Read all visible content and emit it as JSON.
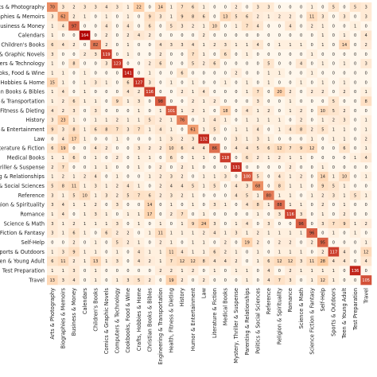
{
  "chart_data": {
    "type": "heatmap",
    "title": "",
    "xlabel": "",
    "ylabel": "",
    "colormap": "OrRd",
    "colors": {
      "low": "#fff7ec",
      "mid": "#fdbb84",
      "high": "#b30000",
      "text_dark": "#222222",
      "text_light": "#ffffff"
    },
    "categories": [
      "Arts & Photography",
      "Biographies & Memoirs",
      "Business & Money",
      "Calendars",
      "Children's Books",
      "Comics & Graphic Novels",
      "Computers & Technology",
      "Cookbooks, Food & Wine",
      "Crafts, Hobbies & Home",
      "Christian Books & Bibles",
      "Engineering & Transportation",
      "Health, Fitness & Dieting",
      "History",
      "Humor & Entertainment",
      "Law",
      "Literature & Fiction",
      "Medical Books",
      "Mystery, Thriller & Suspense",
      "Parenting & Relationships",
      "Politics & Social Sciences",
      "Reference",
      "Religion & Spirituality",
      "Romance",
      "Science & Math",
      "Science Fiction & Fantasy",
      "Self-Help",
      "Sports & Outdoors",
      "Teen & Young Adult",
      "Test Preparation",
      "Travel"
    ],
    "row_labels_visible": [
      "Arts & Photography",
      "Biographies & Memoirs",
      "Business & Money",
      "Calendars",
      "Children's Books",
      "Comics & Graphic Novels",
      "Computers & Technology",
      "Cookbooks, Food & Wine",
      "Crafts, Hobbies & Home",
      "Christian Books & Bibles",
      "Engineering & Transportation",
      "Health, Fitness & Dieting",
      "History",
      "Humor & Entertainment",
      "Law",
      "Literature & Fiction",
      "Medical Books",
      "Mystery, Thriller & Suspense",
      "Parenting & Relationships",
      "Politics & Social Sciences",
      "Reference",
      "Religion & Spirituality",
      "Romance",
      "Science & Math",
      "Science Fiction & Fantasy",
      "Self-Help",
      "Sports & Outdoors",
      "Teen & Young Adult",
      "Test Preparation",
      "Travel"
    ],
    "matrix": [
      [
        70,
        3,
        2,
        3,
        3,
        4,
        3,
        1,
        22,
        0,
        14,
        1,
        7,
        6,
        1,
        0,
        0,
        2,
        0,
        3,
        3,
        0,
        0,
        0,
        1,
        0,
        5,
        0,
        5,
        3
      ],
      [
        3,
        62,
        2,
        1,
        0,
        1,
        0,
        1,
        0,
        9,
        3,
        1,
        9,
        8,
        6,
        0,
        13,
        5,
        6,
        2,
        1,
        2,
        2,
        0,
        11,
        3,
        0,
        3,
        0,
        3
      ],
      [
        1,
        4,
        97,
        0,
        0,
        4,
        0,
        4,
        0,
        6,
        0,
        5,
        3,
        2,
        1,
        10,
        0,
        1,
        7,
        4,
        0,
        0,
        4,
        0,
        2,
        1,
        0,
        0,
        1,
        0
      ],
      [
        1,
        0,
        0,
        164,
        0,
        2,
        0,
        2,
        4,
        2,
        0,
        0,
        0,
        0,
        2,
        0,
        0,
        0,
        0,
        0,
        0,
        0,
        0,
        0,
        0,
        1,
        0,
        1,
        0,
        4
      ],
      [
        6,
        4,
        2,
        0,
        82,
        2,
        0,
        1,
        0,
        0,
        4,
        3,
        3,
        4,
        1,
        2,
        3,
        1,
        1,
        4,
        0,
        1,
        1,
        1,
        0,
        1,
        0,
        14,
        0,
        2
      ],
      [
        3,
        0,
        0,
        2,
        3,
        119,
        0,
        1,
        0,
        0,
        2,
        0,
        0,
        7,
        1,
        0,
        6,
        0,
        1,
        0,
        0,
        0,
        0,
        0,
        1,
        0,
        0,
        0,
        0,
        0
      ],
      [
        1,
        0,
        8,
        0,
        0,
        3,
        123,
        0,
        0,
        2,
        6,
        0,
        0,
        5,
        2,
        6,
        0,
        0,
        0,
        0,
        5,
        0,
        0,
        4,
        0,
        1,
        0,
        1,
        0,
        3
      ],
      [
        1,
        1,
        0,
        1,
        0,
        0,
        0,
        141,
        0,
        1,
        0,
        0,
        6,
        0,
        0,
        0,
        0,
        2,
        0,
        0,
        1,
        1,
        0,
        0,
        1,
        0,
        0,
        0,
        0,
        0
      ],
      [
        15,
        1,
        0,
        1,
        3,
        1,
        0,
        6,
        127,
        3,
        0,
        1,
        0,
        1,
        0,
        0,
        1,
        0,
        1,
        0,
        1,
        0,
        0,
        1,
        0,
        1,
        0,
        1,
        0,
        0
      ],
      [
        1,
        4,
        0,
        1,
        0,
        0,
        0,
        4,
        2,
        116,
        0,
        0,
        2,
        1,
        4,
        0,
        0,
        0,
        1,
        7,
        0,
        20,
        2,
        0,
        2,
        2,
        0,
        2,
        0,
        1
      ],
      [
        1,
        2,
        6,
        1,
        1,
        0,
        9,
        1,
        3,
        0,
        98,
        0,
        0,
        2,
        1,
        2,
        0,
        0,
        0,
        3,
        0,
        0,
        1,
        0,
        0,
        0,
        5,
        0,
        0,
        8
      ],
      [
        4,
        2,
        3,
        0,
        3,
        0,
        0,
        0,
        1,
        0,
        1,
        101,
        1,
        2,
        1,
        0,
        18,
        0,
        4,
        1,
        2,
        0,
        1,
        2,
        0,
        10,
        5,
        2,
        0,
        0
      ],
      [
        3,
        23,
        1,
        0,
        1,
        1,
        2,
        1,
        1,
        5,
        2,
        1,
        76,
        0,
        1,
        4,
        1,
        0,
        1,
        1,
        1,
        1,
        0,
        2,
        0,
        1,
        2,
        3,
        0,
        1
      ],
      [
        9,
        3,
        8,
        1,
        6,
        8,
        7,
        3,
        7,
        1,
        4,
        1,
        0,
        61,
        1,
        5,
        0,
        1,
        1,
        4,
        0,
        1,
        4,
        8,
        2,
        5,
        1,
        1,
        0,
        1
      ],
      [
        0,
        4,
        17,
        1,
        0,
        0,
        1,
        0,
        0,
        0,
        1,
        3,
        2,
        3,
        132,
        0,
        0,
        3,
        1,
        3,
        1,
        0,
        0,
        0,
        1,
        0,
        1,
        1,
        0,
        2
      ],
      [
        6,
        19,
        0,
        0,
        4,
        2,
        0,
        0,
        3,
        2,
        2,
        10,
        6,
        4,
        4,
        86,
        0,
        4,
        4,
        5,
        6,
        12,
        7,
        9,
        12,
        0,
        0,
        6,
        0,
        1
      ],
      [
        1,
        1,
        6,
        0,
        1,
        0,
        2,
        0,
        1,
        1,
        0,
        6,
        0,
        1,
        1,
        0,
        118,
        0,
        6,
        2,
        1,
        2,
        1,
        1,
        0,
        0,
        0,
        0,
        1,
        4
      ],
      [
        2,
        7,
        0,
        0,
        1,
        1,
        0,
        0,
        1,
        0,
        2,
        0,
        2,
        1,
        0,
        0,
        0,
        131,
        0,
        0,
        0,
        0,
        2,
        0,
        0,
        1,
        0,
        0,
        0,
        0
      ],
      [
        1,
        2,
        1,
        2,
        4,
        0,
        1,
        0,
        0,
        1,
        2,
        3,
        2,
        0,
        1,
        1,
        3,
        0,
        100,
        5,
        0,
        4,
        1,
        2,
        0,
        14,
        1,
        10,
        0,
        1
      ],
      [
        5,
        8,
        11,
        1,
        3,
        1,
        2,
        4,
        1,
        0,
        2,
        4,
        4,
        5,
        1,
        5,
        0,
        4,
        3,
        68,
        0,
        8,
        1,
        1,
        0,
        9,
        5,
        1,
        0,
        0
      ],
      [
        3,
        1,
        5,
        10,
        1,
        3,
        2,
        5,
        7,
        6,
        2,
        3,
        2,
        1,
        0,
        0,
        0,
        4,
        5,
        1,
        80,
        1,
        1,
        0,
        1,
        2,
        3,
        1,
        5,
        1
      ],
      [
        3,
        4,
        1,
        1,
        2,
        0,
        3,
        0,
        0,
        14,
        0,
        1,
        0,
        1,
        0,
        3,
        1,
        0,
        4,
        8,
        1,
        88,
        1,
        1,
        0,
        2,
        0,
        1,
        0,
        0
      ],
      [
        1,
        4,
        0,
        1,
        3,
        1,
        0,
        1,
        1,
        17,
        0,
        2,
        7,
        0,
        1,
        0,
        0,
        0,
        0,
        1,
        0,
        3,
        116,
        3,
        0,
        1,
        0,
        2,
        0,
        0
      ],
      [
        3,
        1,
        2,
        1,
        1,
        1,
        3,
        0,
        1,
        0,
        1,
        0,
        1,
        9,
        24,
        3,
        0,
        1,
        4,
        0,
        3,
        0,
        0,
        96,
        0,
        3,
        7,
        9,
        1,
        2
      ],
      [
        3,
        1,
        6,
        1,
        0,
        6,
        2,
        2,
        0,
        1,
        11,
        1,
        1,
        1,
        2,
        4,
        1,
        3,
        1,
        2,
        1,
        1,
        1,
        1,
        96,
        0,
        1,
        0,
        1,
        0
      ],
      [
        0,
        0,
        2,
        0,
        1,
        0,
        5,
        2,
        1,
        0,
        2,
        1,
        0,
        1,
        1,
        0,
        2,
        0,
        19,
        2,
        0,
        2,
        2,
        0,
        2,
        95,
        0,
        0,
        0,
        1
      ],
      [
        1,
        3,
        9,
        1,
        1,
        0,
        1,
        0,
        4,
        1,
        1,
        11,
        4,
        1,
        1,
        6,
        2,
        1,
        0,
        1,
        0,
        1,
        1,
        1,
        0,
        2,
        117,
        4,
        0,
        12
      ],
      [
        6,
        11,
        2,
        1,
        13,
        1,
        3,
        0,
        4,
        2,
        1,
        7,
        12,
        12,
        8,
        4,
        4,
        2,
        0,
        1,
        6,
        12,
        12,
        3,
        11,
        28,
        4,
        4,
        0,
        4
      ],
      [
        1,
        1,
        3,
        0,
        1,
        0,
        0,
        0,
        0,
        0,
        2,
        2,
        1,
        2,
        0,
        1,
        0,
        1,
        1,
        0,
        4,
        0,
        2,
        1,
        1,
        1,
        1,
        0,
        136,
        0
      ],
      [
        13,
        3,
        4,
        0,
        1,
        0,
        1,
        3,
        5,
        2,
        0,
        19,
        2,
        0,
        2,
        0,
        0,
        0,
        1,
        0,
        4,
        7,
        3,
        0,
        1,
        12,
        1,
        0,
        0,
        105
      ]
    ],
    "grid": false,
    "legend": "none"
  }
}
